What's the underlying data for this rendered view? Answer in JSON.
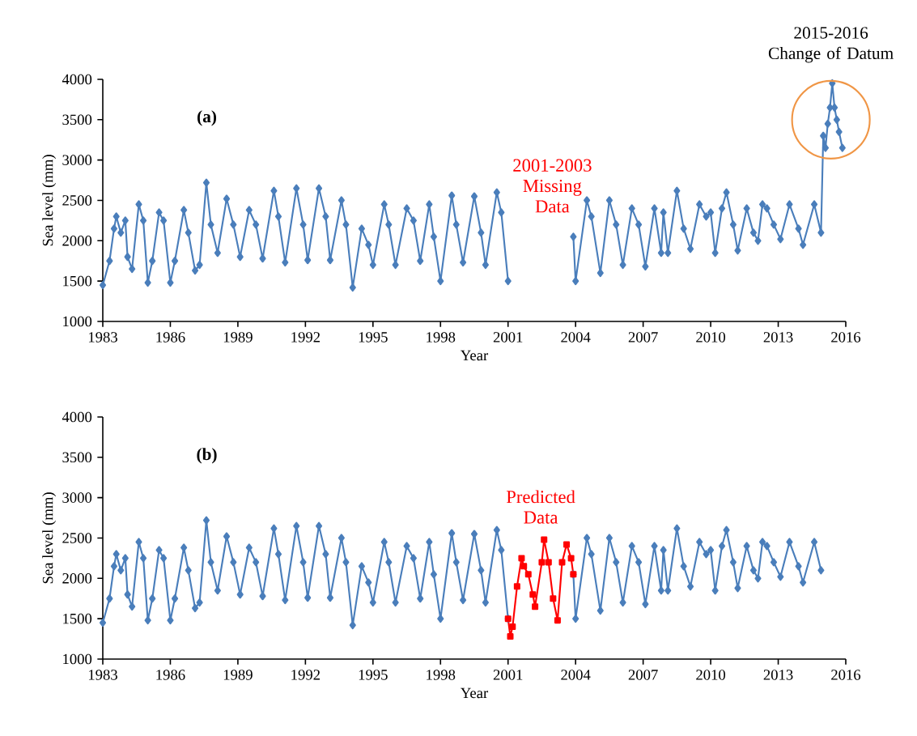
{
  "chart_data": [
    {
      "type": "line",
      "xlabel": "Year",
      "ylabel": "Sea level (mm)",
      "xlim": [
        1983,
        2016
      ],
      "xticks": [
        1983,
        1986,
        1989,
        1992,
        1995,
        1998,
        2001,
        2004,
        2007,
        2010,
        2013,
        2016
      ],
      "ylim": [
        1000,
        4000
      ],
      "yticks": [
        1000,
        1500,
        2000,
        2500,
        3000,
        3500,
        4000
      ],
      "marker": "diamond",
      "line_style": "solid",
      "annotations": [
        "(a)",
        "2001-2003 Missing Data",
        "2015-2016 Change of Datum"
      ],
      "series": [
        {
          "color": "#4a7ebb",
          "x": [
            1983.0,
            1983.3,
            1983.5,
            1983.6,
            1983.8,
            1984.0,
            1984.1,
            1984.3,
            1984.6,
            1984.8,
            1985.0,
            1985.2,
            1985.5,
            1985.7,
            1986.0,
            1986.2,
            1986.6,
            1986.8,
            1987.1,
            1987.3,
            1987.6,
            1987.8,
            1988.1,
            1988.5,
            1988.8,
            1989.1,
            1989.5,
            1989.8,
            1990.1,
            1990.6,
            1990.8,
            1991.1,
            1991.6,
            1991.9,
            1992.1,
            1992.6,
            1992.9,
            1993.1,
            1993.6,
            1993.8,
            1994.1,
            1994.5,
            1994.8,
            1995.0,
            1995.5,
            1995.7,
            1996.0,
            1996.5,
            1996.8,
            1997.1,
            1997.5,
            1997.7,
            1998.0,
            1998.5,
            1998.7,
            1999.0,
            1999.5,
            1999.8,
            2000.0,
            2000.5,
            2000.7,
            2001.0,
            2002.5,
            2003.9,
            2004.0,
            2004.5,
            2004.7,
            2005.1,
            2005.5,
            2005.8,
            2006.1,
            2006.5,
            2006.8,
            2007.1,
            2007.5,
            2007.8,
            2007.9,
            2008.1,
            2008.5,
            2008.8,
            2009.1,
            2009.5,
            2009.8,
            2010.0,
            2010.2,
            2010.5,
            2010.7,
            2011.0,
            2011.2,
            2011.6,
            2011.9,
            2012.1,
            2012.3,
            2012.5,
            2012.8,
            2013.1,
            2013.5,
            2013.9,
            2014.1,
            2014.6,
            2014.9,
            2015.0,
            2015.1,
            2015.2,
            2015.3,
            2015.4,
            2015.5,
            2015.6,
            2015.7,
            2015.85
          ],
          "values": [
            1450,
            1750,
            2150,
            2300,
            2100,
            2250,
            1800,
            1650,
            2450,
            2250,
            1480,
            1750,
            2350,
            2250,
            1480,
            1750,
            2380,
            2100,
            1630,
            1700,
            2720,
            2200,
            1850,
            2520,
            2200,
            1800,
            2380,
            2200,
            1780,
            2620,
            2300,
            1730,
            2650,
            2200,
            1760,
            2650,
            2300,
            1760,
            2500,
            2200,
            1420,
            2150,
            1950,
            1700,
            2450,
            2200,
            1700,
            2400,
            2250,
            1750,
            2450,
            2050,
            1500,
            2560,
            2200,
            1730,
            2550,
            2100,
            1700,
            2600,
            2350,
            1500,
            null,
            2050,
            1500,
            2500,
            2300,
            1600,
            2500,
            2200,
            1700,
            2400,
            2200,
            1680,
            2400,
            1850,
            2350,
            1850,
            2620,
            2150,
            1900,
            2450,
            2300,
            2350,
            1850,
            2400,
            2600,
            2200,
            1880,
            2400,
            2100,
            2000,
            2450,
            2400,
            2200,
            2020,
            2450,
            2150,
            1950,
            2450,
            2100,
            3300,
            3150,
            3450,
            3650,
            3950,
            3650,
            3500,
            3350,
            3150
          ]
        }
      ]
    },
    {
      "type": "line",
      "xlabel": "Year",
      "ylabel": "Sea level (mm)",
      "xlim": [
        1983,
        2016
      ],
      "xticks": [
        1983,
        1986,
        1989,
        1992,
        1995,
        1998,
        2001,
        2004,
        2007,
        2010,
        2013,
        2016
      ],
      "ylim": [
        1000,
        4000
      ],
      "yticks": [
        1000,
        1500,
        2000,
        2500,
        3000,
        3500,
        4000
      ],
      "marker": "diamond",
      "line_style": "solid",
      "annotations": [
        "(b)"
      ],
      "series": [
        {
          "color": "#4a7ebb",
          "x": [
            1983.0,
            1983.3,
            1983.5,
            1983.6,
            1983.8,
            1984.0,
            1984.1,
            1984.3,
            1984.6,
            1984.8,
            1985.0,
            1985.2,
            1985.5,
            1985.7,
            1986.0,
            1986.2,
            1986.6,
            1986.8,
            1987.1,
            1987.3,
            1987.6,
            1987.8,
            1988.1,
            1988.5,
            1988.8,
            1989.1,
            1989.5,
            1989.8,
            1990.1,
            1990.6,
            1990.8,
            1991.1,
            1991.6,
            1991.9,
            1992.1,
            1992.6,
            1992.9,
            1993.1,
            1993.6,
            1993.8,
            1994.1,
            1994.5,
            1994.8,
            1995.0,
            1995.5,
            1995.7,
            1996.0,
            1996.5,
            1996.8,
            1997.1,
            1997.5,
            1997.7,
            1998.0,
            1998.5,
            1998.7,
            1999.0,
            1999.5,
            1999.8,
            2000.0,
            2000.5,
            2000.7,
            2001.0,
            2002.5,
            2003.9,
            2004.0,
            2004.5,
            2004.7,
            2005.1,
            2005.5,
            2005.8,
            2006.1,
            2006.5,
            2006.8,
            2007.1,
            2007.5,
            2007.8,
            2007.9,
            2008.1,
            2008.5,
            2008.8,
            2009.1,
            2009.5,
            2009.8,
            2010.0,
            2010.2,
            2010.5,
            2010.7,
            2011.0,
            2011.2,
            2011.6,
            2011.9,
            2012.1,
            2012.3,
            2012.5,
            2012.8,
            2013.1,
            2013.5,
            2013.9,
            2014.1,
            2014.6,
            2014.9
          ],
          "values": [
            1450,
            1750,
            2150,
            2300,
            2100,
            2250,
            1800,
            1650,
            2450,
            2250,
            1480,
            1750,
            2350,
            2250,
            1480,
            1750,
            2380,
            2100,
            1630,
            1700,
            2720,
            2200,
            1850,
            2520,
            2200,
            1800,
            2380,
            2200,
            1780,
            2620,
            2300,
            1730,
            2650,
            2200,
            1760,
            2650,
            2300,
            1760,
            2500,
            2200,
            1420,
            2150,
            1950,
            1700,
            2450,
            2200,
            1700,
            2400,
            2250,
            1750,
            2450,
            2050,
            1500,
            2560,
            2200,
            1730,
            2550,
            2100,
            1700,
            2600,
            2350,
            1500,
            null,
            2050,
            1500,
            2500,
            2300,
            1600,
            2500,
            2200,
            1700,
            2400,
            2200,
            1680,
            2400,
            1850,
            2350,
            1850,
            2620,
            2150,
            1900,
            2450,
            2300,
            2350,
            1850,
            2400,
            2600,
            2200,
            1880,
            2400,
            2100,
            2000,
            2450,
            2400,
            2200,
            2020,
            2450,
            2150,
            1950,
            2450,
            2100
          ]
        },
        {
          "name": "Predicted Data",
          "color": "#ff0000",
          "marker": "square",
          "x": [
            2001.0,
            2001.1,
            2001.2,
            2001.4,
            2001.6,
            2001.7,
            2001.9,
            2002.1,
            2002.2,
            2002.5,
            2002.6,
            2002.8,
            2003.0,
            2003.2,
            2003.4,
            2003.6,
            2003.8,
            2003.9
          ],
          "values": [
            1500,
            1280,
            1400,
            1900,
            2250,
            2150,
            2050,
            1800,
            1650,
            2200,
            2480,
            2200,
            1750,
            1480,
            2200,
            2420,
            2250,
            2050
          ]
        }
      ]
    }
  ]
}
